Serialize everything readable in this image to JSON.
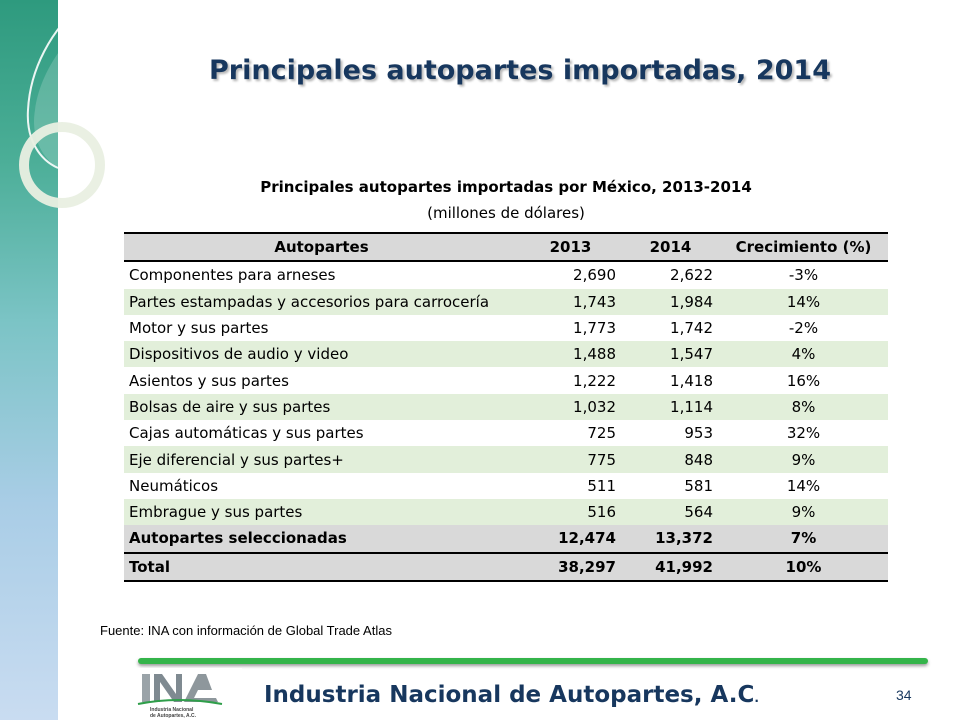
{
  "slide": {
    "title": "Principales autopartes importadas, 2014",
    "source": "Fuente: INA con información de Global Trade Atlas",
    "organization": "Industria Nacional de  Autopartes, A.C",
    "organization_dot": ".",
    "page_number": "34",
    "logo": {
      "icon": "ina-logo-icon",
      "text_line1": "Industria Nacional",
      "text_line2": "de Autopartes, A.C."
    }
  },
  "table": {
    "title": "Principales autopartes importadas por México, 2013-2014",
    "subtitle": "(millones de dólares)",
    "headers": [
      "Autopartes",
      "2013",
      "2014",
      "Crecimiento  (%)"
    ],
    "rows": [
      [
        "Componentes para arneses",
        "2,690",
        "2,622",
        "-3%"
      ],
      [
        "Partes estampadas y accesorios para carrocería",
        "1,743",
        "1,984",
        "14%"
      ],
      [
        "Motor y sus partes",
        "1,773",
        "1,742",
        "-2%"
      ],
      [
        "Dispositivos de audio y video",
        "1,488",
        "1,547",
        "4%"
      ],
      [
        "Asientos y sus partes",
        "1,222",
        "1,418",
        "16%"
      ],
      [
        "Bolsas de aire y sus partes",
        "1,032",
        "1,114",
        "8%"
      ],
      [
        "Cajas automáticas y sus partes",
        "725",
        "953",
        "32%"
      ],
      [
        "Eje diferencial y sus partes+",
        "775",
        "848",
        "9%"
      ],
      [
        "Neumáticos",
        "511",
        "581",
        "14%"
      ],
      [
        "Embrague y sus partes",
        "516",
        "564",
        "9%"
      ]
    ],
    "selected_row": [
      "Autopartes seleccionadas",
      "12,474",
      "13,372",
      "7%"
    ],
    "total_row": [
      "Total",
      "38,297",
      "41,992",
      "10%"
    ]
  },
  "colors": {
    "title": "#17375e",
    "row_band": "#e2efda",
    "header_fill": "#d9d9d9",
    "accent_bar": "#34b44a"
  }
}
